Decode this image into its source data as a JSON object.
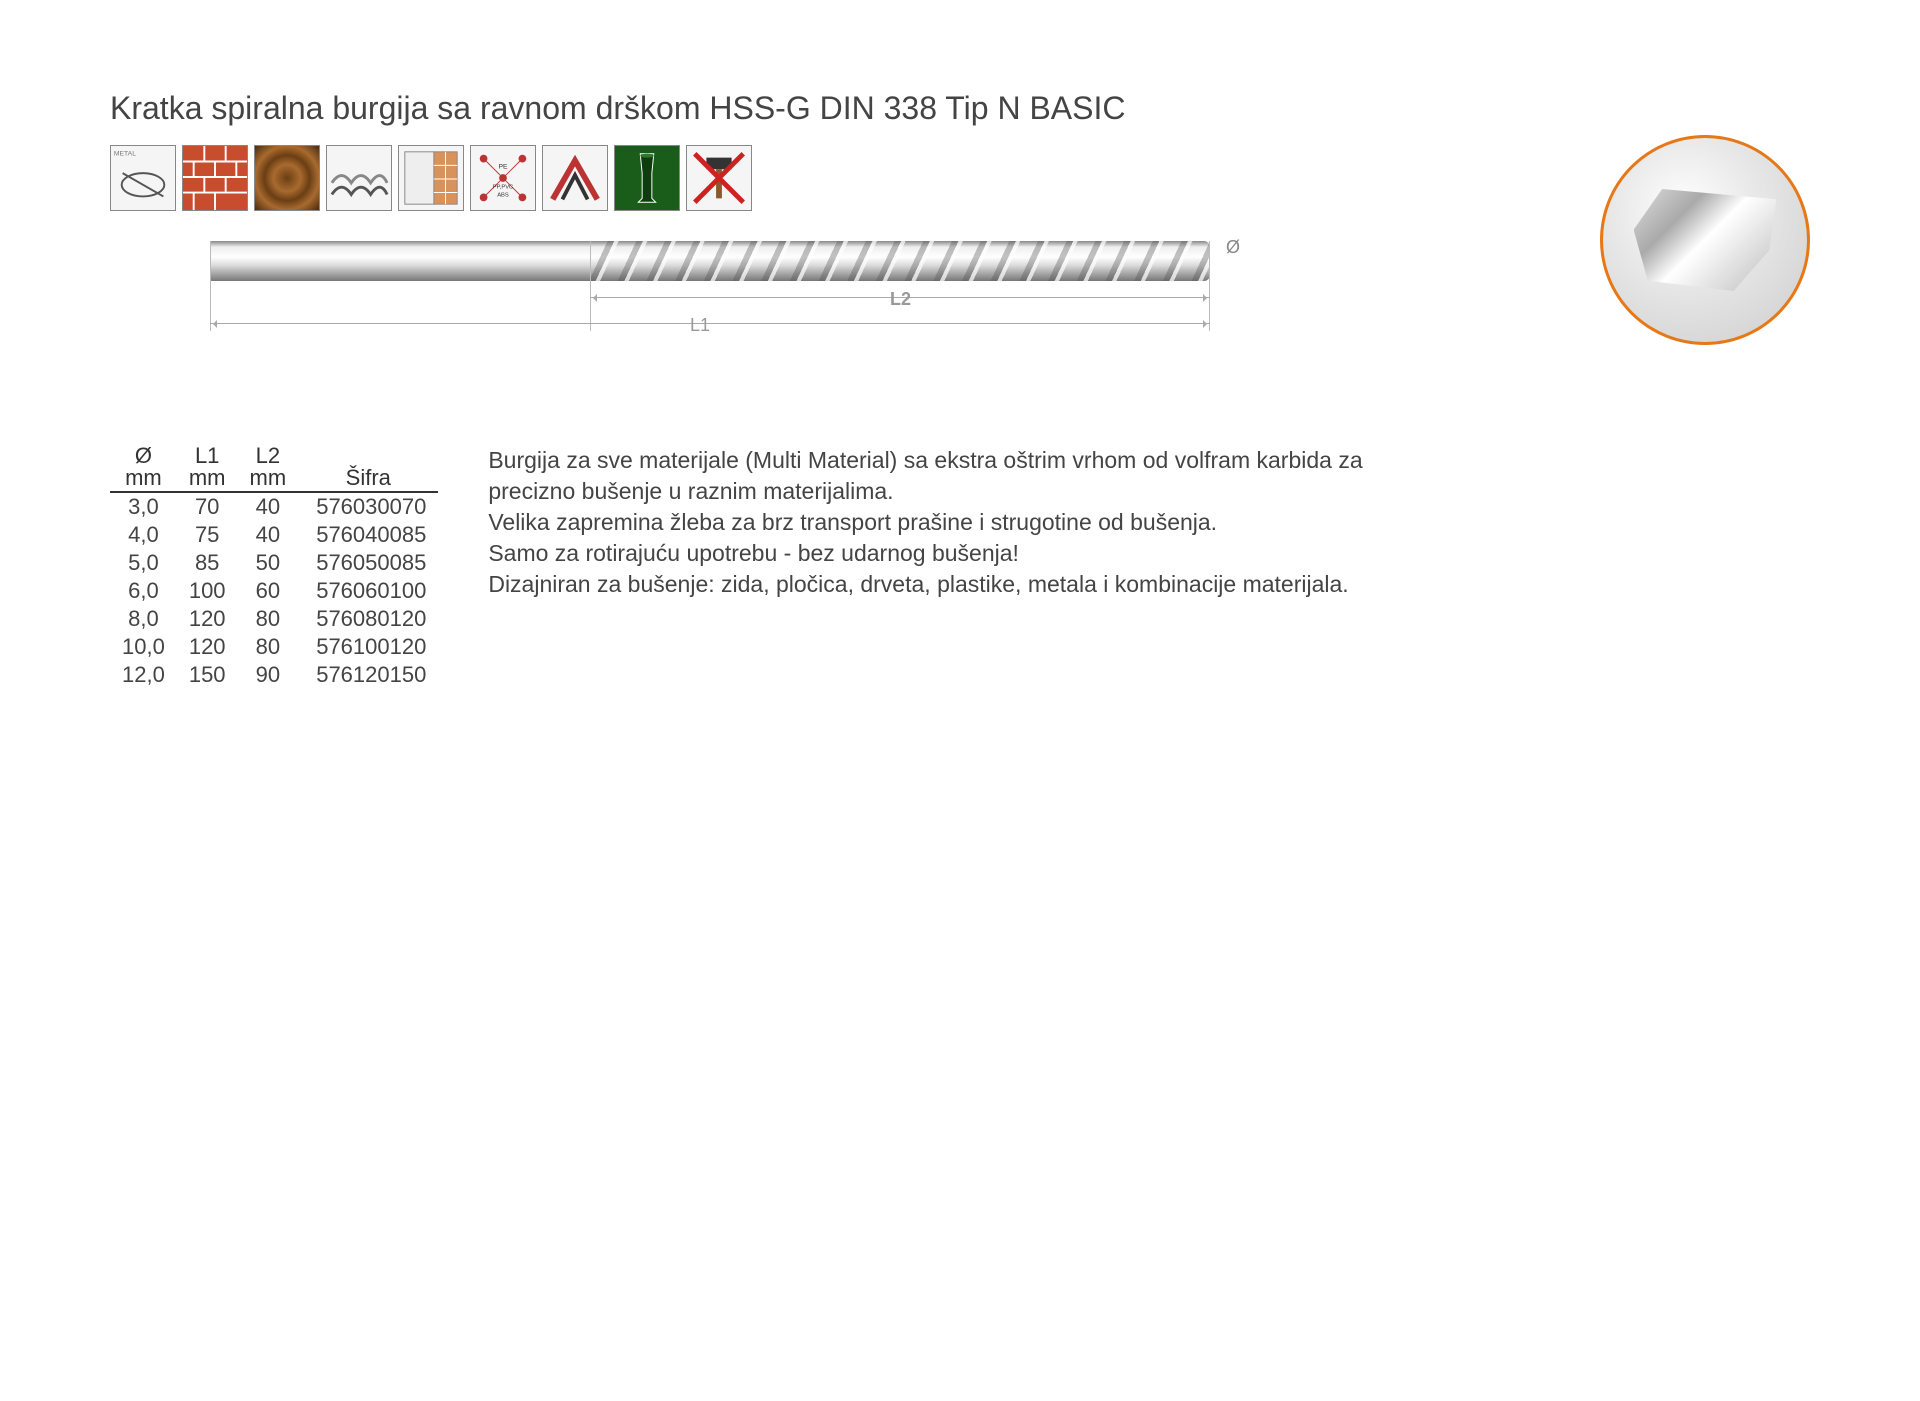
{
  "title": "Kratka spiralna burgija sa ravnom drškom  HSS-G DIN 338 Tip N BASIC",
  "accent_color": "#e67817",
  "icons": [
    {
      "name": "metal-icon",
      "label": "METAL"
    },
    {
      "name": "brick-icon",
      "label": ""
    },
    {
      "name": "wood-icon",
      "label": ""
    },
    {
      "name": "roof-icon",
      "label": ""
    },
    {
      "name": "tile-icon",
      "label": ""
    },
    {
      "name": "plastic-icon",
      "label": "PE PP,PVC ABS"
    },
    {
      "name": "nohammer-house-icon",
      "label": ""
    },
    {
      "name": "glass-icon",
      "label": ""
    },
    {
      "name": "nohammer-icon",
      "label": ""
    }
  ],
  "diagram": {
    "diameter_symbol": "Ø",
    "l1_label": "L1",
    "l2_label": "L2"
  },
  "table": {
    "columns": [
      {
        "header": "Ø",
        "unit": "mm"
      },
      {
        "header": "L1",
        "unit": "mm"
      },
      {
        "header": "L2",
        "unit": "mm"
      },
      {
        "header": "Šifra",
        "unit": ""
      }
    ],
    "rows": [
      [
        "3,0",
        "70",
        "40",
        "576030070"
      ],
      [
        "4,0",
        "75",
        "40",
        "576040085"
      ],
      [
        "5,0",
        "85",
        "50",
        "576050085"
      ],
      [
        "6,0",
        "100",
        "60",
        "576060100"
      ],
      [
        "8,0",
        "120",
        "80",
        "576080120"
      ],
      [
        "10,0",
        "120",
        "80",
        "576100120"
      ],
      [
        "12,0",
        "150",
        "90",
        "576120150"
      ]
    ]
  },
  "description": [
    "Burgija za sve materijale (Multi Material) sa ekstra oštrim vrhom od volfram karbida za precizno bušenje u raznim materijalima.",
    "Velika zapremina žleba za brz transport prašine i strugotine od bušenja.",
    "Samo za rotirajuću upotrebu - bez udarnog bušenja!",
    "Dizajniran za bušenje: zida, pločica, drveta, plastike, metala i kombinacije materijala."
  ]
}
